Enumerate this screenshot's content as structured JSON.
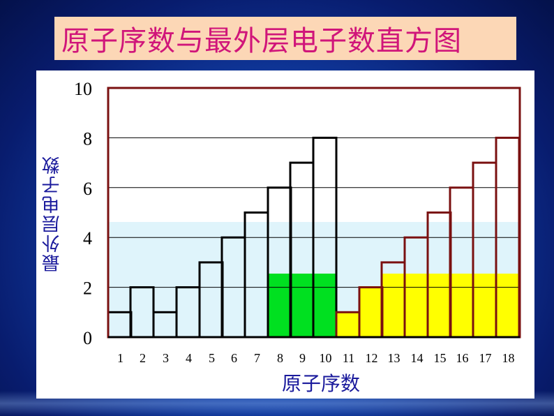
{
  "title": "原子序数与最外层电子数直方图",
  "chart_data": {
    "type": "bar",
    "title": "原子序数与最外层电子数直方图",
    "xlabel": "原子序数",
    "ylabel": "最外层电子数",
    "categories": [
      "1",
      "2",
      "3",
      "4",
      "5",
      "6",
      "7",
      "8",
      "9",
      "10",
      "11",
      "12",
      "13",
      "14",
      "15",
      "16",
      "17",
      "18"
    ],
    "values": [
      1,
      2,
      1,
      2,
      3,
      4,
      5,
      6,
      7,
      8,
      1,
      2,
      3,
      4,
      5,
      6,
      7,
      8
    ],
    "ylim": [
      0,
      10
    ],
    "yticks": [
      "0",
      "2",
      "4",
      "6",
      "8",
      "10"
    ],
    "grid": true,
    "colors": {
      "frame": "#7a1010",
      "bar_outline_dark": "#000000",
      "bar_outline_red": "#7a1010",
      "band_light": "#dff4fb",
      "highlight_green": "#00e020",
      "highlight_yellow": "#ffff00",
      "title_text": "#d0157a",
      "axis_title": "#1a1a9c"
    }
  }
}
